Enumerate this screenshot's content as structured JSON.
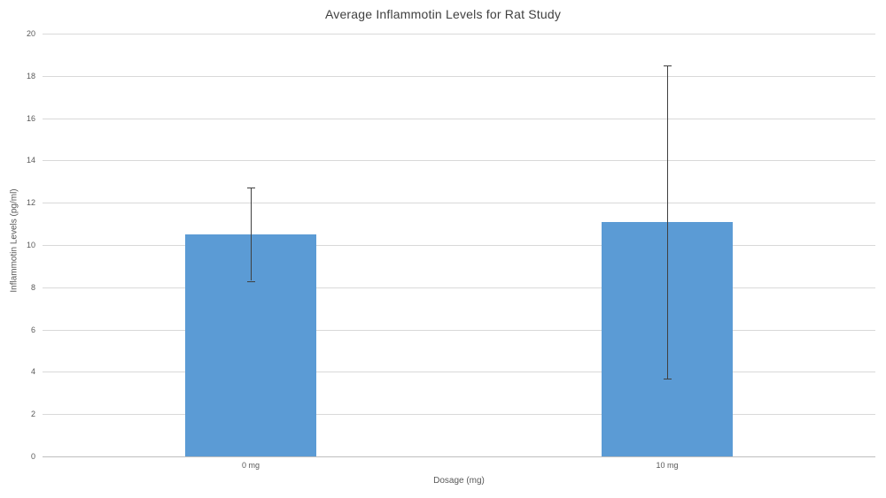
{
  "chart_data": {
    "type": "bar",
    "title": "Average Inflammotin Levels for Rat Study",
    "xlabel": "Dosage (mg)",
    "ylabel": "Inflammotin Levels (pg/ml)",
    "categories": [
      "0 mg",
      "10 mg"
    ],
    "values": [
      10.5,
      11.1
    ],
    "error_bars_plus_minus": [
      2.2,
      7.4
    ],
    "error_bar_ranges": [
      [
        8.3,
        12.7
      ],
      [
        3.7,
        18.5
      ]
    ],
    "ylim": [
      0,
      20
    ],
    "yticks": [
      0,
      2,
      4,
      6,
      8,
      10,
      12,
      14,
      16,
      18,
      20
    ],
    "grid": true,
    "legend": false,
    "colors": {
      "bar_fill": "#5B9BD5",
      "error_bar": "#404040",
      "gridline": "#D9D9D9",
      "axis_line": "#BFBFBF",
      "tick_text": "#595959",
      "title_text": "#404040",
      "background": "#FFFFFF"
    }
  }
}
